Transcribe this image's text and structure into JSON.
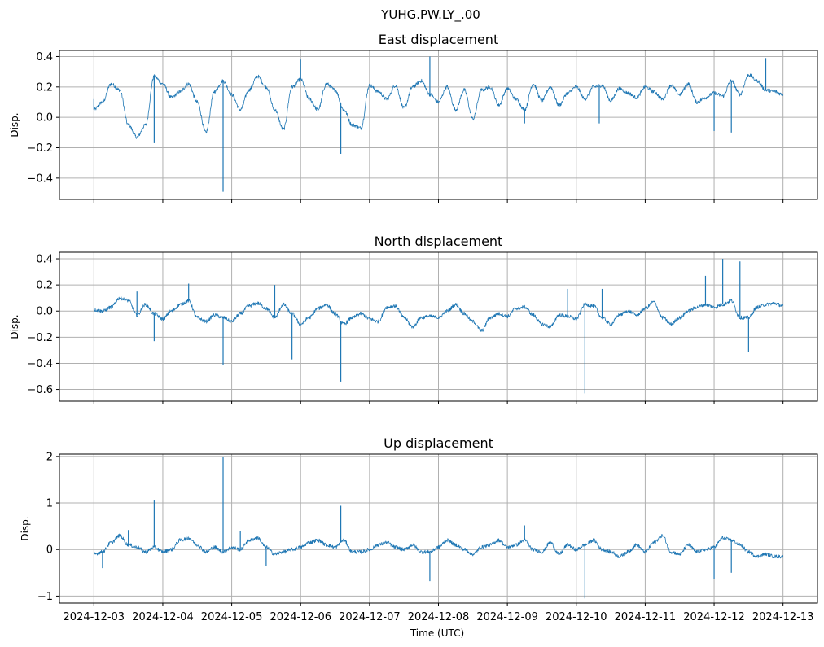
{
  "figure": {
    "suptitle": "YUHG.PW.LY_.00",
    "xlabel": "Time (UTC)"
  },
  "colors": {
    "series": "#1f77b4",
    "grid": "#b0b0b0"
  },
  "chart_data": [
    {
      "type": "line",
      "title": "East displacement",
      "ylabel": "Disp.",
      "xlabel": "",
      "xlim": [
        "2024-12-02T12:00:00Z",
        "2024-12-13T12:00:00Z"
      ],
      "ylim": [
        -0.54,
        0.44
      ],
      "yticks": [
        -0.4,
        -0.2,
        0.0,
        0.2,
        0.4
      ],
      "ytick_labels": [
        "−0.4",
        "−0.2",
        "0.0",
        "0.2",
        "0.4"
      ],
      "grid": true,
      "series": [
        {
          "x": [
            "2024-12-03T00:00:00Z",
            "2024-12-03T03:00:00Z",
            "2024-12-03T06:00:00Z",
            "2024-12-03T09:00:00Z",
            "2024-12-03T12:00:00Z",
            "2024-12-03T15:00:00Z",
            "2024-12-03T18:00:00Z",
            "2024-12-03T21:00:00Z",
            "2024-12-04T00:00:00Z",
            "2024-12-04T03:00:00Z",
            "2024-12-04T06:00:00Z",
            "2024-12-04T09:00:00Z",
            "2024-12-04T12:00:00Z",
            "2024-12-04T15:00:00Z",
            "2024-12-04T18:00:00Z",
            "2024-12-04T21:00:00Z",
            "2024-12-05T00:00:00Z",
            "2024-12-05T03:00:00Z",
            "2024-12-05T06:00:00Z",
            "2024-12-05T09:00:00Z",
            "2024-12-05T12:00:00Z",
            "2024-12-05T15:00:00Z",
            "2024-12-05T18:00:00Z",
            "2024-12-05T21:00:00Z",
            "2024-12-06T00:00:00Z",
            "2024-12-06T03:00:00Z",
            "2024-12-06T06:00:00Z",
            "2024-12-06T09:00:00Z",
            "2024-12-06T12:00:00Z",
            "2024-12-06T15:00:00Z",
            "2024-12-06T18:00:00Z",
            "2024-12-06T21:00:00Z",
            "2024-12-07T00:00:00Z",
            "2024-12-07T03:00:00Z",
            "2024-12-07T06:00:00Z",
            "2024-12-07T09:00:00Z",
            "2024-12-07T12:00:00Z",
            "2024-12-07T15:00:00Z",
            "2024-12-07T18:00:00Z",
            "2024-12-07T21:00:00Z",
            "2024-12-08T00:00:00Z",
            "2024-12-08T03:00:00Z",
            "2024-12-08T06:00:00Z",
            "2024-12-08T09:00:00Z",
            "2024-12-08T12:00:00Z",
            "2024-12-08T15:00:00Z",
            "2024-12-08T18:00:00Z",
            "2024-12-08T21:00:00Z",
            "2024-12-09T00:00:00Z",
            "2024-12-09T03:00:00Z",
            "2024-12-09T06:00:00Z",
            "2024-12-09T09:00:00Z",
            "2024-12-09T12:00:00Z",
            "2024-12-09T15:00:00Z",
            "2024-12-09T18:00:00Z",
            "2024-12-09T21:00:00Z",
            "2024-12-10T00:00:00Z",
            "2024-12-10T03:00:00Z",
            "2024-12-10T06:00:00Z",
            "2024-12-10T09:00:00Z",
            "2024-12-10T12:00:00Z",
            "2024-12-10T15:00:00Z",
            "2024-12-10T18:00:00Z",
            "2024-12-10T21:00:00Z",
            "2024-12-11T00:00:00Z",
            "2024-12-11T03:00:00Z",
            "2024-12-11T06:00:00Z",
            "2024-12-11T09:00:00Z",
            "2024-12-11T12:00:00Z",
            "2024-12-11T15:00:00Z",
            "2024-12-11T18:00:00Z",
            "2024-12-11T21:00:00Z",
            "2024-12-12T00:00:00Z",
            "2024-12-12T03:00:00Z",
            "2024-12-12T06:00:00Z",
            "2024-12-12T09:00:00Z",
            "2024-12-12T12:00:00Z",
            "2024-12-12T15:00:00Z",
            "2024-12-12T18:00:00Z",
            "2024-12-12T21:00:00Z",
            "2024-12-13T00:00:00Z"
          ],
          "y": [
            0.05,
            0.1,
            0.22,
            0.18,
            -0.05,
            -0.13,
            -0.05,
            0.27,
            0.22,
            0.13,
            0.17,
            0.22,
            0.1,
            -0.1,
            0.17,
            0.24,
            0.15,
            0.05,
            0.18,
            0.27,
            0.2,
            0.05,
            -0.08,
            0.2,
            0.25,
            0.12,
            0.05,
            0.22,
            0.18,
            0.05,
            -0.05,
            -0.07,
            0.21,
            0.17,
            0.12,
            0.21,
            0.06,
            0.2,
            0.24,
            0.15,
            0.1,
            0.2,
            0.05,
            0.18,
            -0.01,
            0.18,
            0.2,
            0.08,
            0.19,
            0.12,
            0.05,
            0.22,
            0.11,
            0.2,
            0.08,
            0.16,
            0.2,
            0.12,
            0.2,
            0.21,
            0.11,
            0.19,
            0.16,
            0.13,
            0.2,
            0.17,
            0.12,
            0.21,
            0.15,
            0.22,
            0.1,
            0.13,
            0.16,
            0.14,
            0.24,
            0.15,
            0.28,
            0.24,
            0.18,
            0.17,
            0.15
          ],
          "spikes": [
            {
              "x": "2024-12-03T00:00:00Z",
              "y": 0.12
            },
            {
              "x": "2024-12-03T21:00:00Z",
              "y": -0.17
            },
            {
              "x": "2024-12-04T21:00:00Z",
              "y": -0.49
            },
            {
              "x": "2024-12-06T00:00:00Z",
              "y": 0.38
            },
            {
              "x": "2024-12-06T14:00:00Z",
              "y": -0.24
            },
            {
              "x": "2024-12-07T21:00:00Z",
              "y": 0.4
            },
            {
              "x": "2024-12-09T06:00:00Z",
              "y": -0.04
            },
            {
              "x": "2024-12-10T08:00:00Z",
              "y": -0.04
            },
            {
              "x": "2024-12-12T00:00:00Z",
              "y": -0.09
            },
            {
              "x": "2024-12-12T06:00:00Z",
              "y": -0.1
            },
            {
              "x": "2024-12-12T18:00:00Z",
              "y": 0.39
            }
          ]
        }
      ]
    },
    {
      "type": "line",
      "title": "North displacement",
      "ylabel": "Disp.",
      "xlabel": "",
      "xlim": [
        "2024-12-02T12:00:00Z",
        "2024-12-13T12:00:00Z"
      ],
      "ylim": [
        -0.69,
        0.45
      ],
      "yticks": [
        -0.6,
        -0.4,
        -0.2,
        0.0,
        0.2,
        0.4
      ],
      "ytick_labels": [
        "−0.6",
        "−0.4",
        "−0.2",
        "0.0",
        "0.2",
        "0.4"
      ],
      "grid": true,
      "series": [
        {
          "x": [
            "2024-12-03T00:00:00Z",
            "2024-12-03T03:00:00Z",
            "2024-12-03T06:00:00Z",
            "2024-12-03T09:00:00Z",
            "2024-12-03T12:00:00Z",
            "2024-12-03T15:00:00Z",
            "2024-12-03T18:00:00Z",
            "2024-12-03T21:00:00Z",
            "2024-12-04T00:00:00Z",
            "2024-12-04T03:00:00Z",
            "2024-12-04T06:00:00Z",
            "2024-12-04T09:00:00Z",
            "2024-12-04T12:00:00Z",
            "2024-12-04T15:00:00Z",
            "2024-12-04T18:00:00Z",
            "2024-12-04T21:00:00Z",
            "2024-12-05T00:00:00Z",
            "2024-12-05T03:00:00Z",
            "2024-12-05T06:00:00Z",
            "2024-12-05T09:00:00Z",
            "2024-12-05T12:00:00Z",
            "2024-12-05T15:00:00Z",
            "2024-12-05T18:00:00Z",
            "2024-12-05T21:00:00Z",
            "2024-12-06T00:00:00Z",
            "2024-12-06T03:00:00Z",
            "2024-12-06T06:00:00Z",
            "2024-12-06T09:00:00Z",
            "2024-12-06T12:00:00Z",
            "2024-12-06T15:00:00Z",
            "2024-12-06T18:00:00Z",
            "2024-12-06T21:00:00Z",
            "2024-12-07T00:00:00Z",
            "2024-12-07T03:00:00Z",
            "2024-12-07T06:00:00Z",
            "2024-12-07T09:00:00Z",
            "2024-12-07T12:00:00Z",
            "2024-12-07T15:00:00Z",
            "2024-12-07T18:00:00Z",
            "2024-12-07T21:00:00Z",
            "2024-12-08T00:00:00Z",
            "2024-12-08T03:00:00Z",
            "2024-12-08T06:00:00Z",
            "2024-12-08T09:00:00Z",
            "2024-12-08T12:00:00Z",
            "2024-12-08T15:00:00Z",
            "2024-12-08T18:00:00Z",
            "2024-12-08T21:00:00Z",
            "2024-12-09T00:00:00Z",
            "2024-12-09T03:00:00Z",
            "2024-12-09T06:00:00Z",
            "2024-12-09T09:00:00Z",
            "2024-12-09T12:00:00Z",
            "2024-12-09T15:00:00Z",
            "2024-12-09T18:00:00Z",
            "2024-12-09T21:00:00Z",
            "2024-12-10T00:00:00Z",
            "2024-12-10T03:00:00Z",
            "2024-12-10T06:00:00Z",
            "2024-12-10T09:00:00Z",
            "2024-12-10T12:00:00Z",
            "2024-12-10T15:00:00Z",
            "2024-12-10T18:00:00Z",
            "2024-12-10T21:00:00Z",
            "2024-12-11T00:00:00Z",
            "2024-12-11T03:00:00Z",
            "2024-12-11T06:00:00Z",
            "2024-12-11T09:00:00Z",
            "2024-12-11T12:00:00Z",
            "2024-12-11T15:00:00Z",
            "2024-12-11T18:00:00Z",
            "2024-12-11T21:00:00Z",
            "2024-12-12T00:00:00Z",
            "2024-12-12T03:00:00Z",
            "2024-12-12T06:00:00Z",
            "2024-12-12T09:00:00Z",
            "2024-12-12T12:00:00Z",
            "2024-12-12T15:00:00Z",
            "2024-12-12T18:00:00Z",
            "2024-12-12T21:00:00Z",
            "2024-12-13T00:00:00Z"
          ],
          "y": [
            0.01,
            0.0,
            0.03,
            0.1,
            0.08,
            -0.03,
            0.05,
            -0.02,
            -0.06,
            0.0,
            0.05,
            0.08,
            -0.05,
            -0.08,
            -0.03,
            -0.05,
            -0.08,
            -0.02,
            0.04,
            0.06,
            0.02,
            -0.05,
            0.05,
            -0.02,
            -0.1,
            -0.05,
            0.02,
            0.05,
            -0.02,
            -0.1,
            -0.05,
            -0.02,
            -0.06,
            -0.08,
            0.03,
            0.04,
            -0.05,
            -0.12,
            -0.05,
            -0.04,
            -0.05,
            0.0,
            0.05,
            -0.02,
            -0.08,
            -0.15,
            -0.05,
            -0.02,
            -0.04,
            0.02,
            0.03,
            -0.03,
            -0.1,
            -0.12,
            -0.03,
            -0.04,
            -0.06,
            0.05,
            0.04,
            -0.05,
            -0.1,
            -0.03,
            0.0,
            -0.03,
            0.02,
            0.07,
            -0.05,
            -0.1,
            -0.05,
            0.0,
            0.03,
            0.05,
            0.03,
            0.05,
            0.08,
            -0.05,
            -0.05,
            0.03,
            0.05,
            0.06,
            0.04
          ],
          "spikes": [
            {
              "x": "2024-12-03T15:00:00Z",
              "y": 0.15
            },
            {
              "x": "2024-12-03T21:00:00Z",
              "y": -0.23
            },
            {
              "x": "2024-12-04T09:00:00Z",
              "y": 0.21
            },
            {
              "x": "2024-12-04T21:00:00Z",
              "y": -0.41
            },
            {
              "x": "2024-12-05T15:00:00Z",
              "y": 0.2
            },
            {
              "x": "2024-12-05T21:00:00Z",
              "y": -0.37
            },
            {
              "x": "2024-12-06T14:00:00Z",
              "y": -0.54
            },
            {
              "x": "2024-12-09T21:00:00Z",
              "y": 0.17
            },
            {
              "x": "2024-12-10T03:00:00Z",
              "y": -0.63
            },
            {
              "x": "2024-12-10T09:00:00Z",
              "y": 0.17
            },
            {
              "x": "2024-12-11T21:00:00Z",
              "y": 0.27
            },
            {
              "x": "2024-12-12T03:00:00Z",
              "y": 0.4
            },
            {
              "x": "2024-12-12T09:00:00Z",
              "y": 0.38
            },
            {
              "x": "2024-12-12T12:00:00Z",
              "y": -0.31
            }
          ]
        }
      ]
    },
    {
      "type": "line",
      "title": "Up displacement",
      "ylabel": "Disp.",
      "xlabel": "Time (UTC)",
      "xlim": [
        "2024-12-02T12:00:00Z",
        "2024-12-13T12:00:00Z"
      ],
      "ylim": [
        -1.15,
        2.05
      ],
      "yticks": [
        -1,
        0,
        1,
        2
      ],
      "ytick_labels": [
        "−1",
        "0",
        "1",
        "2"
      ],
      "grid": true,
      "xticks": [
        "2024-12-03T00:00:00Z",
        "2024-12-04T00:00:00Z",
        "2024-12-05T00:00:00Z",
        "2024-12-06T00:00:00Z",
        "2024-12-07T00:00:00Z",
        "2024-12-08T00:00:00Z",
        "2024-12-09T00:00:00Z",
        "2024-12-10T00:00:00Z",
        "2024-12-11T00:00:00Z",
        "2024-12-12T00:00:00Z",
        "2024-12-13T00:00:00Z"
      ],
      "xtick_labels": [
        "2024-12-03",
        "2024-12-04",
        "2024-12-05",
        "2024-12-06",
        "2024-12-07",
        "2024-12-08",
        "2024-12-09",
        "2024-12-10",
        "2024-12-11",
        "2024-12-12",
        "2024-12-13"
      ],
      "series": [
        {
          "x": [
            "2024-12-03T00:00:00Z",
            "2024-12-03T03:00:00Z",
            "2024-12-03T06:00:00Z",
            "2024-12-03T09:00:00Z",
            "2024-12-03T12:00:00Z",
            "2024-12-03T15:00:00Z",
            "2024-12-03T18:00:00Z",
            "2024-12-03T21:00:00Z",
            "2024-12-04T00:00:00Z",
            "2024-12-04T03:00:00Z",
            "2024-12-04T06:00:00Z",
            "2024-12-04T09:00:00Z",
            "2024-12-04T12:00:00Z",
            "2024-12-04T15:00:00Z",
            "2024-12-04T18:00:00Z",
            "2024-12-04T21:00:00Z",
            "2024-12-05T00:00:00Z",
            "2024-12-05T03:00:00Z",
            "2024-12-05T06:00:00Z",
            "2024-12-05T09:00:00Z",
            "2024-12-05T12:00:00Z",
            "2024-12-05T15:00:00Z",
            "2024-12-05T18:00:00Z",
            "2024-12-05T21:00:00Z",
            "2024-12-06T00:00:00Z",
            "2024-12-06T03:00:00Z",
            "2024-12-06T06:00:00Z",
            "2024-12-06T09:00:00Z",
            "2024-12-06T12:00:00Z",
            "2024-12-06T15:00:00Z",
            "2024-12-06T18:00:00Z",
            "2024-12-06T21:00:00Z",
            "2024-12-07T00:00:00Z",
            "2024-12-07T03:00:00Z",
            "2024-12-07T06:00:00Z",
            "2024-12-07T09:00:00Z",
            "2024-12-07T12:00:00Z",
            "2024-12-07T15:00:00Z",
            "2024-12-07T18:00:00Z",
            "2024-12-07T21:00:00Z",
            "2024-12-08T00:00:00Z",
            "2024-12-08T03:00:00Z",
            "2024-12-08T06:00:00Z",
            "2024-12-08T09:00:00Z",
            "2024-12-08T12:00:00Z",
            "2024-12-08T15:00:00Z",
            "2024-12-08T18:00:00Z",
            "2024-12-08T21:00:00Z",
            "2024-12-09T00:00:00Z",
            "2024-12-09T03:00:00Z",
            "2024-12-09T06:00:00Z",
            "2024-12-09T09:00:00Z",
            "2024-12-09T12:00:00Z",
            "2024-12-09T15:00:00Z",
            "2024-12-09T18:00:00Z",
            "2024-12-09T21:00:00Z",
            "2024-12-10T00:00:00Z",
            "2024-12-10T03:00:00Z",
            "2024-12-10T06:00:00Z",
            "2024-12-10T09:00:00Z",
            "2024-12-10T12:00:00Z",
            "2024-12-10T15:00:00Z",
            "2024-12-10T18:00:00Z",
            "2024-12-10T21:00:00Z",
            "2024-12-11T00:00:00Z",
            "2024-12-11T03:00:00Z",
            "2024-12-11T06:00:00Z",
            "2024-12-11T09:00:00Z",
            "2024-12-11T12:00:00Z",
            "2024-12-11T15:00:00Z",
            "2024-12-11T18:00:00Z",
            "2024-12-11T21:00:00Z",
            "2024-12-12T00:00:00Z",
            "2024-12-12T03:00:00Z",
            "2024-12-12T06:00:00Z",
            "2024-12-12T09:00:00Z",
            "2024-12-12T12:00:00Z",
            "2024-12-12T15:00:00Z",
            "2024-12-12T18:00:00Z",
            "2024-12-12T21:00:00Z",
            "2024-12-13T00:00:00Z"
          ],
          "y": [
            -0.1,
            -0.05,
            0.15,
            0.3,
            0.1,
            0.05,
            -0.05,
            0.05,
            -0.05,
            0.0,
            0.2,
            0.25,
            0.1,
            -0.05,
            0.05,
            -0.05,
            0.05,
            0.0,
            0.2,
            0.25,
            0.05,
            -0.1,
            -0.05,
            0.0,
            0.05,
            0.15,
            0.2,
            0.1,
            0.05,
            0.2,
            -0.05,
            -0.05,
            0.0,
            0.1,
            0.15,
            0.05,
            0.0,
            0.1,
            -0.05,
            -0.05,
            0.05,
            0.2,
            0.1,
            0.0,
            -0.1,
            0.05,
            0.1,
            0.2,
            0.05,
            0.1,
            0.2,
            0.0,
            -0.05,
            0.15,
            -0.1,
            0.1,
            0.0,
            0.1,
            0.2,
            0.0,
            -0.05,
            -0.15,
            -0.05,
            0.1,
            -0.05,
            0.15,
            0.3,
            -0.05,
            -0.1,
            0.1,
            -0.05,
            0.0,
            0.05,
            0.25,
            0.2,
            0.1,
            -0.05,
            -0.15,
            -0.1,
            -0.15,
            -0.15
          ],
          "spikes": [
            {
              "x": "2024-12-03T03:00:00Z",
              "y": -0.4
            },
            {
              "x": "2024-12-03T12:00:00Z",
              "y": 0.42
            },
            {
              "x": "2024-12-03T21:00:00Z",
              "y": 1.07
            },
            {
              "x": "2024-12-04T21:00:00Z",
              "y": 1.98
            },
            {
              "x": "2024-12-05T03:00:00Z",
              "y": 0.4
            },
            {
              "x": "2024-12-05T12:00:00Z",
              "y": -0.35
            },
            {
              "x": "2024-12-06T14:00:00Z",
              "y": 0.94
            },
            {
              "x": "2024-12-07T21:00:00Z",
              "y": -0.68
            },
            {
              "x": "2024-12-09T06:00:00Z",
              "y": 0.52
            },
            {
              "x": "2024-12-10T03:00:00Z",
              "y": -1.05
            },
            {
              "x": "2024-12-12T00:00:00Z",
              "y": -0.63
            },
            {
              "x": "2024-12-12T06:00:00Z",
              "y": -0.5
            }
          ]
        }
      ]
    }
  ]
}
